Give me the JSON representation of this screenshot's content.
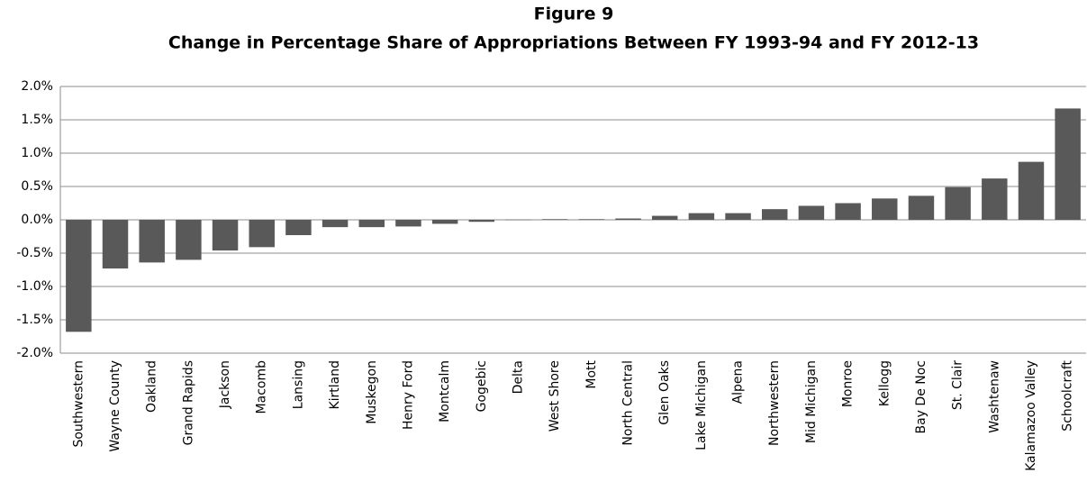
{
  "chart_data": {
    "type": "bar",
    "title": "Figure 9",
    "subtitle": "Change in Percentage Share of Appropriations Between FY 1993-94 and FY 2012-13",
    "categories": [
      "Southwestern",
      "Wayne County",
      "Oakland",
      "Grand Rapids",
      "Jackson",
      "Macomb",
      "Lansing",
      "Kirtland",
      "Muskegon",
      "Henry Ford",
      "Montcalm",
      "Gogebic",
      "Delta",
      "West Shore",
      "Mott",
      "North Central",
      "Glen Oaks",
      "Lake Michigan",
      "Alpena",
      "Northwestern",
      "Mid Michigan",
      "Monroe",
      "Kellogg",
      "Bay De Noc",
      "St. Clair",
      "Washtenaw",
      "Kalamazoo Valley",
      "Schoolcraft"
    ],
    "values": [
      -1.68,
      -0.73,
      -0.64,
      -0.6,
      -0.46,
      -0.41,
      -0.23,
      -0.11,
      -0.11,
      -0.1,
      -0.06,
      -0.03,
      0.003,
      0.01,
      0.01,
      0.02,
      0.06,
      0.1,
      0.1,
      0.16,
      0.21,
      0.25,
      0.32,
      0.36,
      0.49,
      0.62,
      0.87,
      1.67
    ],
    "color": "#595959",
    "ylim": [
      -2,
      2
    ],
    "yticks": [
      {
        "value": -2,
        "label": "-2.0%"
      },
      {
        "value": -1.5,
        "label": "-1.5%"
      },
      {
        "value": -1,
        "label": "-1.0%"
      },
      {
        "value": -0.5,
        "label": "-0.5%"
      },
      {
        "value": 0,
        "label": "0.0%"
      },
      {
        "value": 0.5,
        "label": "0.5%"
      },
      {
        "value": 1,
        "label": "1.0%"
      },
      {
        "value": 1.5,
        "label": "1.5%"
      },
      {
        "value": 2,
        "label": "2.0%"
      }
    ],
    "grid": true
  }
}
